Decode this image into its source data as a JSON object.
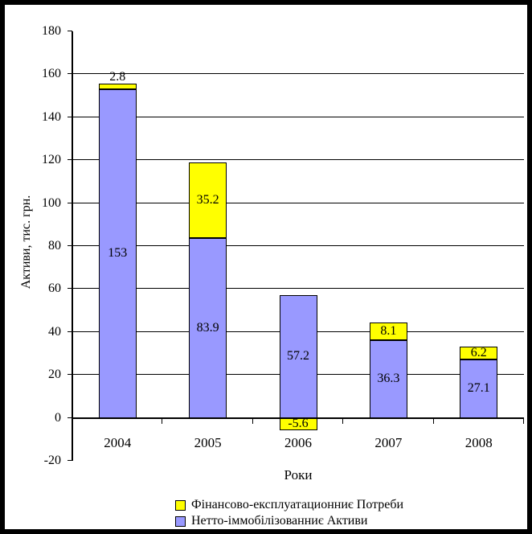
{
  "chart_data": {
    "type": "bar",
    "stacked": true,
    "title": "",
    "xlabel": "Роки",
    "ylabel": "Активи, тис. грн.",
    "ylim": [
      -20,
      180
    ],
    "ytick_step": 20,
    "grid": true,
    "legend_position": "bottom",
    "categories": [
      "2004",
      "2005",
      "2006",
      "2007",
      "2008"
    ],
    "series": [
      {
        "name": "Нетто-іммобілізованниє Активи",
        "color": "#9999FF",
        "values": [
          153,
          83.9,
          57.2,
          36.3,
          27.1
        ],
        "labels": [
          "153",
          "83.9",
          "57.2",
          "36.3",
          "27.1"
        ]
      },
      {
        "name": "Фінансово-експлуатационниє Потреби",
        "color": "#FFFF00",
        "values": [
          2.8,
          35.2,
          -5.6,
          8.1,
          6.2
        ],
        "labels": [
          "2.8",
          "35.2",
          "-5.6",
          "8.1",
          "6.2"
        ]
      }
    ],
    "legend_order": [
      1,
      0
    ]
  }
}
